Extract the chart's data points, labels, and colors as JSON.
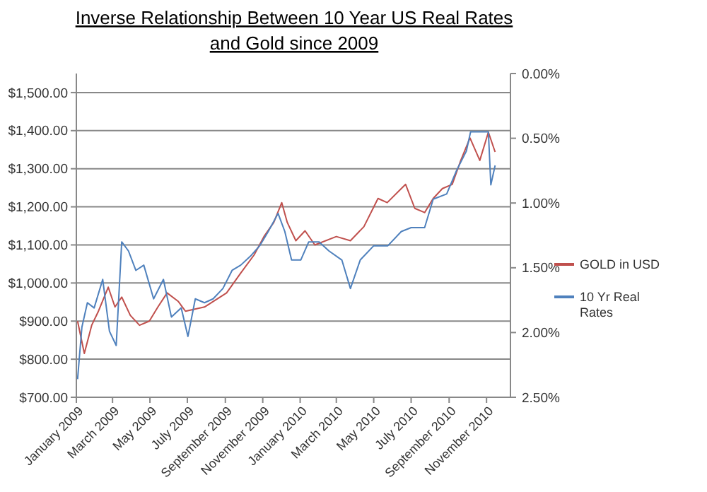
{
  "chart_data": {
    "type": "line",
    "title": "Inverse Relationship Between 10 Year US Real Rates and Gold since 2009",
    "xlim": [
      "2009-01-01",
      "2010-12-10"
    ],
    "xticks": [
      {
        "value": "2009-01-01",
        "label": "January 2009"
      },
      {
        "value": "2009-03-01",
        "label": "March 2009"
      },
      {
        "value": "2009-05-01",
        "label": "May 2009"
      },
      {
        "value": "2009-07-01",
        "label": "July 2009"
      },
      {
        "value": "2009-09-01",
        "label": "September 2009"
      },
      {
        "value": "2009-11-01",
        "label": "November 2009"
      },
      {
        "value": "2010-01-01",
        "label": "January 2010"
      },
      {
        "value": "2010-03-01",
        "label": "March 2010"
      },
      {
        "value": "2010-05-01",
        "label": "May 2010"
      },
      {
        "value": "2010-07-01",
        "label": "July 2010"
      },
      {
        "value": "2010-09-01",
        "label": "September 2010"
      },
      {
        "value": "2010-11-01",
        "label": "November 2010"
      }
    ],
    "ylim": [
      700,
      1550
    ],
    "yticks": [
      {
        "value": 700,
        "label": "$700.00"
      },
      {
        "value": 800,
        "label": "$800.00"
      },
      {
        "value": 900,
        "label": "$900.00"
      },
      {
        "value": 1000,
        "label": "$1,000.00"
      },
      {
        "value": 1100,
        "label": "$1,100.00"
      },
      {
        "value": 1200,
        "label": "$1,200.00"
      },
      {
        "value": 1300,
        "label": "$1,300.00"
      },
      {
        "value": 1400,
        "label": "$1,400.00"
      },
      {
        "value": 1500,
        "label": "$1,500.00"
      }
    ],
    "y2lim": [
      2.5,
      0
    ],
    "y2ticks": [
      {
        "value": 0,
        "label": "0.00%"
      },
      {
        "value": 0.5,
        "label": "0.50%"
      },
      {
        "value": 1,
        "label": "1.00%"
      },
      {
        "value": 1.5,
        "label": "1.50%"
      },
      {
        "value": 2,
        "label": "2.00%"
      },
      {
        "value": 2.5,
        "label": "2.50%"
      }
    ],
    "grid": "y",
    "legend": "right",
    "line_style": "solid",
    "marker": "none",
    "series": [
      {
        "name": "GOLD in USD",
        "color": "#c0504d",
        "x": [
          "2009-01-03",
          "2009-01-14",
          "2009-01-26",
          "2009-02-06",
          "2009-02-22",
          "2009-03-05",
          "2009-03-16",
          "2009-03-30",
          "2009-04-14",
          "2009-04-30",
          "2009-05-14",
          "2009-05-29",
          "2009-06-16",
          "2009-06-28",
          "2009-07-29",
          "2009-09-03",
          "2009-09-26",
          "2009-10-18",
          "2009-11-03",
          "2009-11-19",
          "2009-12-02",
          "2009-12-11",
          "2009-12-25",
          "2010-01-09",
          "2010-01-25",
          "2010-03-01",
          "2010-03-24",
          "2010-04-15",
          "2010-05-08",
          "2010-05-23",
          "2010-06-15",
          "2010-06-22",
          "2010-07-07",
          "2010-07-23",
          "2010-08-06",
          "2010-08-21",
          "2010-09-06",
          "2010-09-20",
          "2010-10-05",
          "2010-10-21",
          "2010-11-04",
          "2010-11-15"
        ],
        "values": [
          900,
          815,
          889,
          926,
          989,
          937,
          963,
          915,
          889,
          900,
          937,
          974,
          952,
          926,
          937,
          974,
          1026,
          1074,
          1122,
          1159,
          1211,
          1159,
          1111,
          1137,
          1100,
          1122,
          1111,
          1148,
          1222,
          1211,
          1248,
          1259,
          1196,
          1185,
          1222,
          1248,
          1259,
          1322,
          1381,
          1322,
          1396,
          1344
        ]
      },
      {
        "name": "10 Yr Real Rates",
        "color": "#4f81bd",
        "axis": "y2",
        "x": [
          "2009-01-03",
          "2009-01-10",
          "2009-01-19",
          "2009-01-30",
          "2009-02-13",
          "2009-02-24",
          "2009-03-07",
          "2009-03-16",
          "2009-03-27",
          "2009-04-08",
          "2009-04-21",
          "2009-05-07",
          "2009-05-23",
          "2009-06-05",
          "2009-06-21",
          "2009-07-02",
          "2009-07-14",
          "2009-07-29",
          "2009-08-12",
          "2009-08-28",
          "2009-09-12",
          "2009-09-26",
          "2009-10-12",
          "2009-10-27",
          "2009-11-10",
          "2009-11-26",
          "2009-12-07",
          "2009-12-18",
          "2010-01-02",
          "2010-01-15",
          "2010-02-01",
          "2010-02-17",
          "2010-03-10",
          "2010-03-24",
          "2010-04-09",
          "2010-05-01",
          "2010-05-24",
          "2010-06-15",
          "2010-07-01",
          "2010-07-23",
          "2010-08-06",
          "2010-08-28",
          "2010-09-13",
          "2010-09-29",
          "2010-10-06",
          "2010-10-21",
          "2010-11-04",
          "2010-11-08",
          "2010-11-15"
        ],
        "values": [
          2.36,
          1.96,
          1.77,
          1.81,
          1.59,
          1.99,
          2.1,
          1.3,
          1.37,
          1.52,
          1.48,
          1.74,
          1.59,
          1.88,
          1.81,
          2.03,
          1.74,
          1.77,
          1.74,
          1.66,
          1.52,
          1.48,
          1.41,
          1.33,
          1.22,
          1.08,
          1.22,
          1.44,
          1.44,
          1.3,
          1.3,
          1.37,
          1.44,
          1.66,
          1.44,
          1.33,
          1.33,
          1.22,
          1.19,
          1.19,
          0.97,
          0.93,
          0.75,
          0.6,
          0.45,
          0.45,
          0.45,
          0.86,
          0.71
        ]
      }
    ]
  }
}
